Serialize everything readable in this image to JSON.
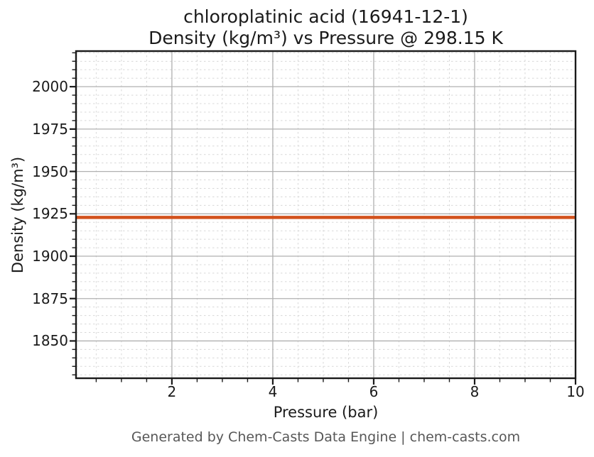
{
  "chart_data": {
    "type": "line",
    "title": "chloroplatinic acid (16941-12-1)",
    "subtitle": "Density (kg/m³) vs Pressure @ 298.15 K",
    "xlabel": "Pressure (bar)",
    "ylabel": "Density (kg/m³)",
    "series": [
      {
        "name": "density-vs-pressure",
        "x": [
          0.1,
          10
        ],
        "y": [
          1922.9,
          1922.9
        ],
        "color": "#d2511c",
        "line_width": 4.5
      }
    ],
    "xlim": [
      0.1,
      10
    ],
    "ylim": [
      1828,
      2021
    ],
    "x_ticks": [
      2,
      4,
      6,
      8,
      10
    ],
    "y_ticks": [
      1850,
      1875,
      1900,
      1925,
      1950,
      1975,
      2000
    ],
    "x_minor_step": 0.5,
    "y_minor_step": 5,
    "grid": "major-solid-minor-dashed",
    "legend_position": "none",
    "colors": {
      "major_grid": "#b0b0b0",
      "minor_grid": "#d8d8d8",
      "axis_border": "#1a1a1a",
      "tick_mark": "#1a1a1a",
      "tick_label": "#1a1a1a",
      "title_text": "#1a1a1a",
      "footer_text": "#575757",
      "background": "#ffffff",
      "line": "#d2511c"
    }
  },
  "footer": {
    "text": "Generated by Chem-Casts Data Engine | chem-casts.com"
  }
}
